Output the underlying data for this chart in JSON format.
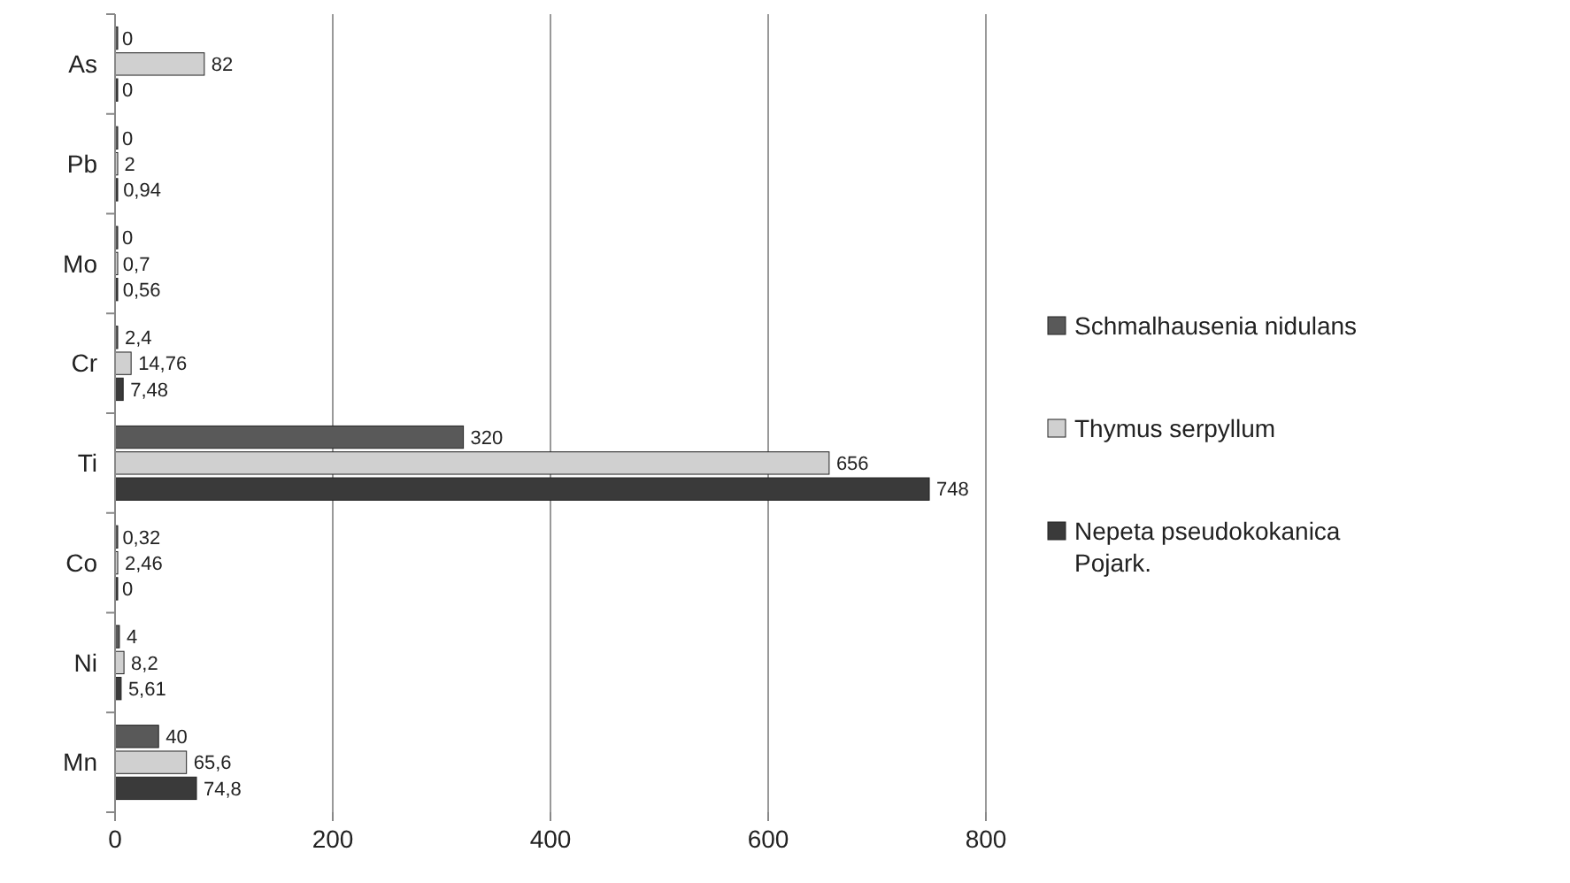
{
  "chart_data": {
    "type": "bar",
    "orientation": "horizontal",
    "categories": [
      "As",
      "Pb",
      "Mo",
      "Cr",
      "Ti",
      "Co",
      "Ni",
      "Mn"
    ],
    "series": [
      {
        "name": "Schmalhausenia nidulans",
        "color": "#595959",
        "values": [
          0,
          0,
          0,
          2.4,
          320,
          0.32,
          4,
          40
        ],
        "value_labels": [
          "0",
          "0",
          "0",
          "2,4",
          "320",
          "0,32",
          "4",
          "40"
        ]
      },
      {
        "name": "Thymus serpyllum",
        "color": "#d0d0d0",
        "values": [
          82,
          2,
          0.7,
          14.76,
          656,
          2.46,
          8.2,
          65.6
        ],
        "value_labels": [
          "82",
          "2",
          "0,7",
          "14,76",
          "656",
          "2,46",
          "8,2",
          "65,6"
        ]
      },
      {
        "name": "Nepeta pseudokokanica Pojark.",
        "color": "#3a3a3a",
        "values": [
          0,
          0.94,
          0.56,
          7.48,
          748,
          0,
          5.61,
          74.8
        ],
        "value_labels": [
          "0",
          "0,94",
          "0,56",
          "7,48",
          "748",
          "0",
          "5,61",
          "74,8"
        ]
      }
    ],
    "xlim": [
      0,
      800
    ],
    "xticks": [
      0,
      200,
      400,
      600,
      800
    ],
    "grid": "x",
    "legend": "right"
  }
}
